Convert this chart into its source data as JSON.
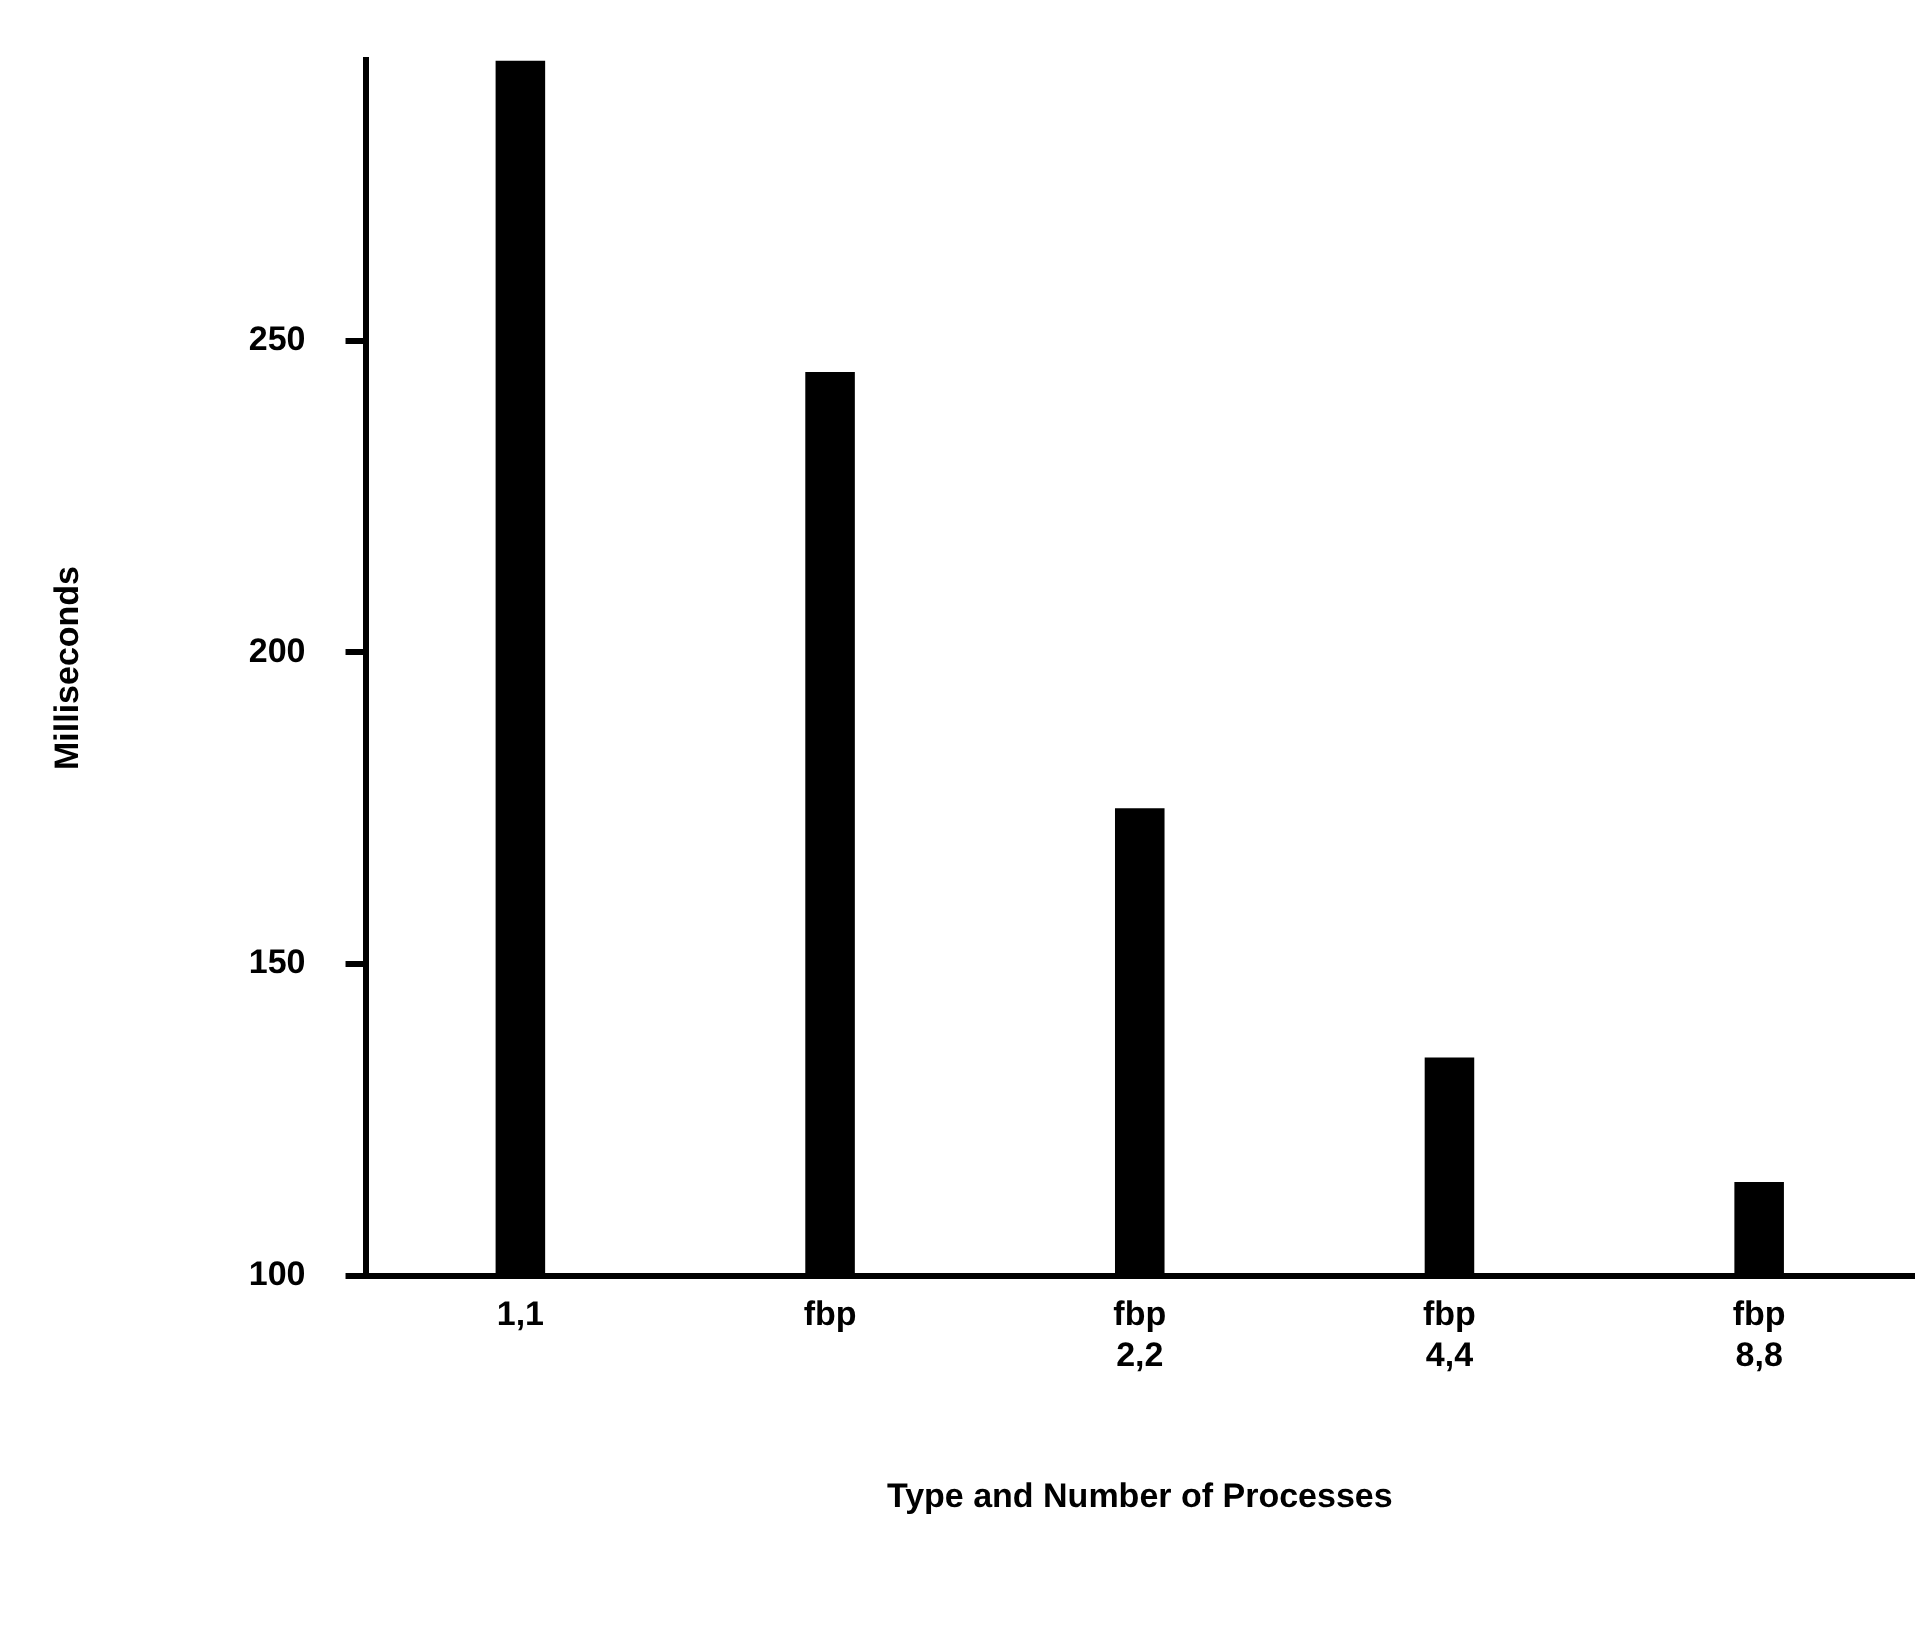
{
  "chart_data": {
    "type": "bar",
    "categories": [
      "1,1",
      "fbp",
      "fbp\n2,2",
      "fbp\n4,4",
      "fbp\n8,8"
    ],
    "values": [
      295,
      245,
      175,
      135,
      115
    ],
    "color": "#000000",
    "xlabel": "Type and Number of Processes",
    "ylabel": "Milliseconds",
    "ylim": [
      100,
      295
    ],
    "yticks": [
      100,
      150,
      200,
      250
    ],
    "grid": false,
    "legend": false
  }
}
